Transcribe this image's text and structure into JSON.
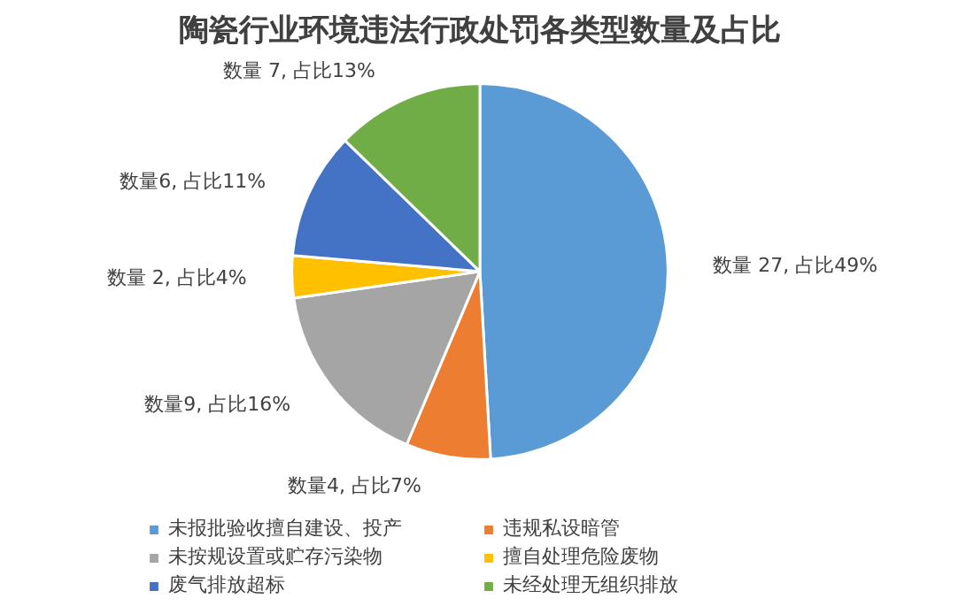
{
  "chart_data": {
    "type": "pie",
    "title": "陶瓷行业环境违法行政处罚各类型数量及占比",
    "categories": [
      "未报批验收擅自建设、投产",
      "违规私设暗管",
      "未按规设置或贮存污染物",
      "擅自处理危险废物",
      "废气排放超标",
      "未经处理无组织排放"
    ],
    "values": [
      27,
      4,
      9,
      2,
      6,
      7
    ],
    "colors": [
      "#5b9bd5",
      "#ed7d31",
      "#a5a5a5",
      "#ffc000",
      "#4472c4",
      "#70ad47"
    ],
    "value_labels": [
      "数量 27, 占比49%",
      "数量4, 占比7%",
      "数量9, 占比16%",
      "数量 2, 占比4%",
      "数量6, 占比11%",
      "数量 7, 占比13%"
    ],
    "legend": "bottom"
  }
}
